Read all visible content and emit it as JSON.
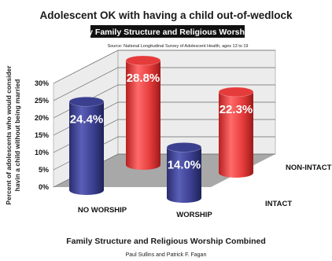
{
  "header": {
    "title": "Adolescent OK with having a child out-of-wedlock",
    "subtitle": "by Family Structure and Religious Worship",
    "source": "Source: National Longitudinal Survey of Adolescent Health, ages 13 to 19"
  },
  "footer": {
    "caption": "Family Structure and Religious Worship Combined",
    "authors": "Paul Sullins and Patrick F. Fagan"
  },
  "colors": {
    "intact": "#3b3f8f",
    "non_intact": "#e53b3b",
    "floor": "#a8a8a8",
    "wall": "#ececec"
  },
  "chart_data": {
    "type": "bar",
    "three_d": true,
    "categories": [
      "NO WORSHIP",
      "WORSHIP"
    ],
    "depth_categories": [
      "INTACT",
      "NON-INTACT"
    ],
    "series": [
      {
        "name": "INTACT",
        "values": [
          24.4,
          14.0
        ]
      },
      {
        "name": "NON-INTACT",
        "values": [
          28.8,
          22.3
        ]
      }
    ],
    "data_labels": [
      [
        "24.4%",
        "14.0%"
      ],
      [
        "28.8%",
        "22.3%"
      ]
    ],
    "ylabel_lines": [
      "Percent of adolescents who would consider",
      "havin a child without being married"
    ],
    "yticks": [
      "0%",
      "5%",
      "10%",
      "15%",
      "20%",
      "25%",
      "30%"
    ],
    "ylim": [
      0,
      30
    ],
    "grid": true
  }
}
